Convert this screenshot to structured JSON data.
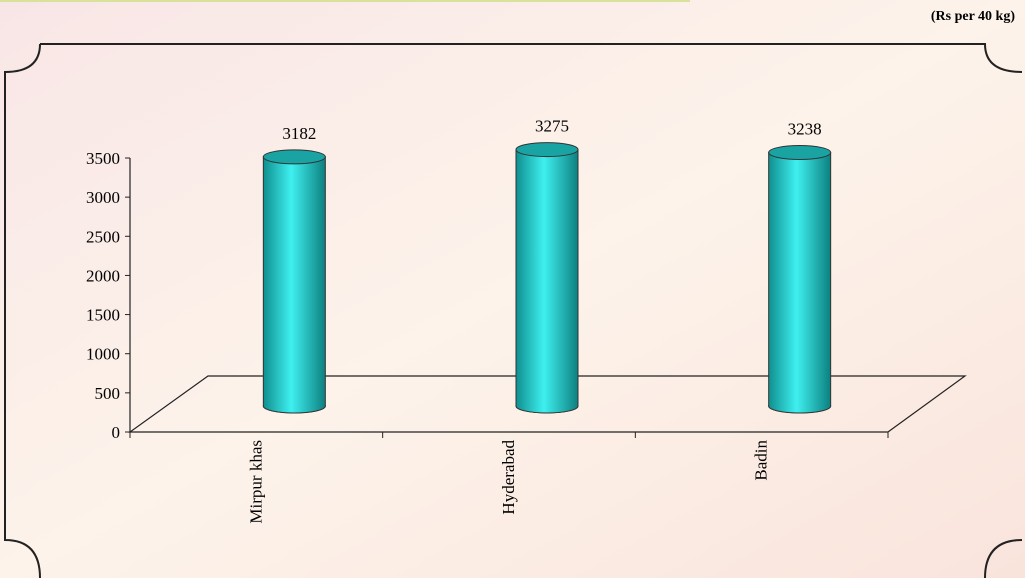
{
  "chart_data": {
    "type": "bar",
    "subtitle": "(Rs per 40 kg)",
    "categories": [
      "Mirpur khas",
      "Hyderabad",
      "Badin"
    ],
    "values": [
      3182,
      3275,
      3238
    ],
    "color": "#2ec8c8",
    "ylim": [
      0,
      3500
    ],
    "yticks": [
      0,
      500,
      1000,
      1500,
      2000,
      2500,
      3000,
      3500
    ]
  }
}
